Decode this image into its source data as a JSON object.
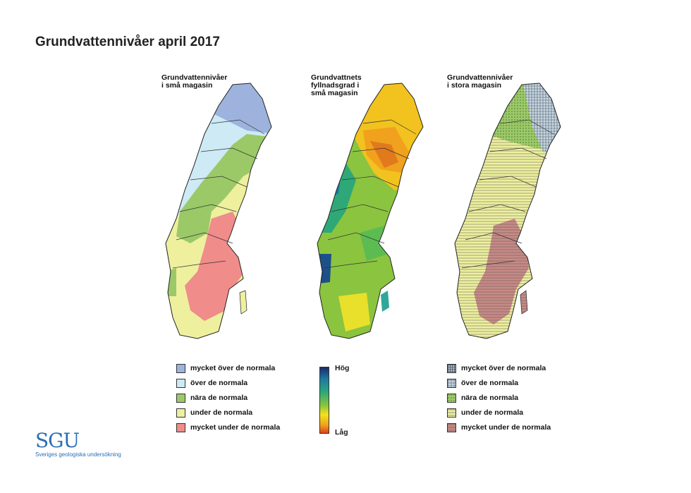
{
  "title": "Grundvattennivåer april 2017",
  "maps": [
    {
      "title": "Grundvattennivåer\ni små magasin"
    },
    {
      "title": "Grundvattnets\nfyllnadsgrad i\nsmå magasin"
    },
    {
      "title": "Grundvattennivåer\ni stora magasin"
    }
  ],
  "legend_small": [
    {
      "label": "mycket över de normala",
      "color": "#9db3dd"
    },
    {
      "label": "över de normala",
      "color": "#cdeaf5"
    },
    {
      "label": "nära de normala",
      "color": "#9bc968"
    },
    {
      "label": "under de normala",
      "color": "#eef09e"
    },
    {
      "label": "mycket under de normala",
      "color": "#f08c8a"
    }
  ],
  "gradient": {
    "high": "Hög",
    "low": "Låg"
  },
  "legend_large": [
    {
      "label": "mycket över de normala",
      "color": "#8d9ba8",
      "pattern": "grid"
    },
    {
      "label": "över de normala",
      "color": "#c9d9e3",
      "pattern": "grid"
    },
    {
      "label": "nära de normala",
      "color": "#9bc968",
      "pattern": "dots"
    },
    {
      "label": "under de normala",
      "color": "#eef09e",
      "pattern": "lines"
    },
    {
      "label": "mycket under de normala",
      "color": "#c88a85",
      "pattern": "lines"
    }
  ],
  "logo": {
    "name": "SGU",
    "subtitle": "Sveriges geologiska undersökning"
  }
}
